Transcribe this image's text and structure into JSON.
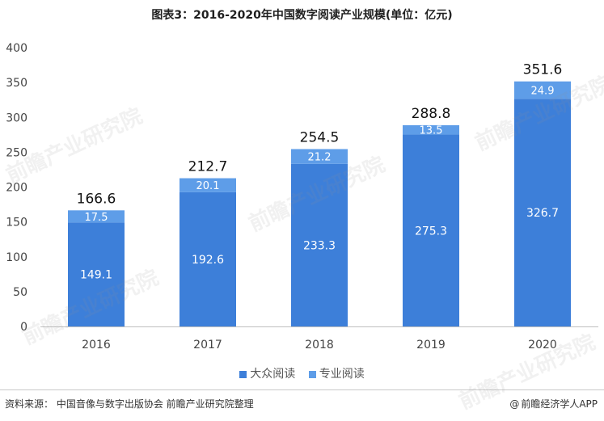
{
  "title": "图表3：2016-2020年中国数字阅读产业规模(单位：亿元)",
  "source": "资料来源：  中国音像与数字出版协会 前瞻产业研究院整理",
  "brand": "前瞻经济学人APP",
  "brand_icon": "at-icon",
  "watermark": "前瞻产业研究院",
  "colors": {
    "mass": "#3d7fd9",
    "pro": "#5e9de8",
    "axis": "#bfbfbf"
  },
  "chart_data": {
    "type": "bar",
    "stacked": true,
    "categories": [
      "2016",
      "2017",
      "2018",
      "2019",
      "2020"
    ],
    "series": [
      {
        "name": "大众阅读",
        "values": [
          149.1,
          192.6,
          233.3,
          275.3,
          326.7
        ]
      },
      {
        "name": "专业阅读",
        "values": [
          17.5,
          20.1,
          21.2,
          13.5,
          24.9
        ]
      }
    ],
    "totals": [
      166.6,
      212.7,
      254.5,
      288.8,
      351.6
    ],
    "ylim": [
      0,
      400
    ],
    "yticks": [
      0,
      50,
      100,
      150,
      200,
      250,
      300,
      350,
      400
    ],
    "grid": false,
    "legend": "bottom"
  }
}
